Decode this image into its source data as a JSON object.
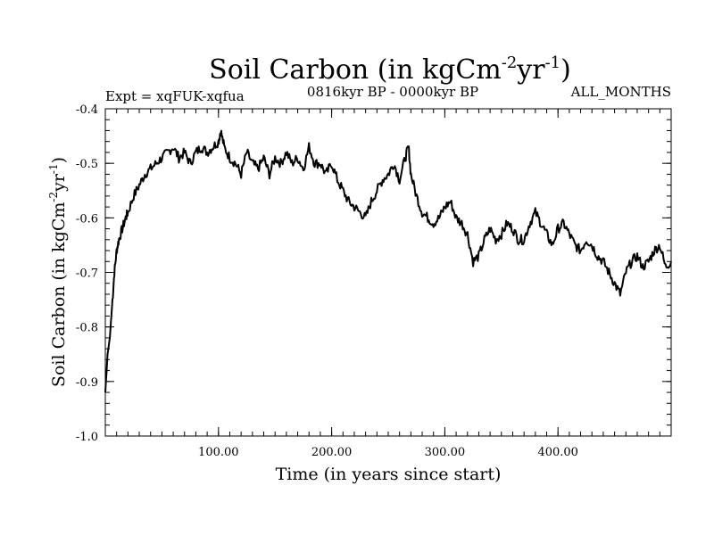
{
  "chart_data": {
    "type": "line",
    "title": "Soil Carbon (in kgCm",
    "title_unit_exp1": "-2",
    "title_unit_mid": "yr",
    "title_unit_exp2": "-1",
    "title_close": ")",
    "left_subtitle": "Expt = xqFUK-xqfua",
    "center_subtitle": "0816kyr BP - 0000kyr BP",
    "right_subtitle": "ALL_MONTHS",
    "xlabel": "Time (in years since start)",
    "ylabel": "Soil Carbon (in kgCm",
    "ylabel_exp1": "-2",
    "ylabel_mid": "yr",
    "ylabel_exp2": "-1",
    "ylabel_close": ")",
    "xlim": [
      0,
      500
    ],
    "ylim": [
      -1.0,
      -0.4
    ],
    "x_ticks": [
      100,
      200,
      300,
      400
    ],
    "x_tick_labels": [
      "100.00",
      "200.00",
      "300.00",
      "400.00"
    ],
    "y_ticks": [
      -1.0,
      -0.9,
      -0.8,
      -0.7,
      -0.6,
      -0.5,
      -0.4
    ],
    "y_tick_labels": [
      "-1.0",
      "-0.9",
      "-0.8",
      "-0.7",
      "-0.6",
      "-0.5",
      "-0.4"
    ],
    "series": [
      {
        "name": "Soil Carbon",
        "color": "#000000",
        "x": [
          0,
          2,
          4,
          6,
          8,
          10,
          12,
          15,
          18,
          20,
          25,
          30,
          35,
          40,
          45,
          50,
          55,
          60,
          65,
          70,
          75,
          80,
          85,
          90,
          95,
          100,
          102,
          105,
          110,
          115,
          120,
          125,
          130,
          135,
          140,
          145,
          150,
          155,
          160,
          165,
          170,
          175,
          180,
          185,
          190,
          195,
          200,
          205,
          210,
          215,
          220,
          225,
          230,
          235,
          240,
          245,
          250,
          255,
          260,
          265,
          268,
          270,
          275,
          280,
          285,
          290,
          295,
          300,
          305,
          310,
          315,
          320,
          325,
          330,
          335,
          340,
          345,
          350,
          355,
          360,
          365,
          370,
          375,
          380,
          385,
          390,
          395,
          400,
          405,
          410,
          415,
          420,
          425,
          430,
          435,
          440,
          445,
          450,
          455,
          460,
          465,
          470,
          475,
          480,
          485,
          490,
          495,
          500
        ],
        "values": [
          -0.92,
          -0.85,
          -0.82,
          -0.76,
          -0.7,
          -0.66,
          -0.64,
          -0.62,
          -0.6,
          -0.59,
          -0.56,
          -0.54,
          -0.52,
          -0.51,
          -0.5,
          -0.49,
          -0.48,
          -0.47,
          -0.49,
          -0.48,
          -0.5,
          -0.48,
          -0.47,
          -0.48,
          -0.47,
          -0.46,
          -0.44,
          -0.47,
          -0.49,
          -0.5,
          -0.52,
          -0.48,
          -0.5,
          -0.51,
          -0.49,
          -0.52,
          -0.49,
          -0.5,
          -0.48,
          -0.5,
          -0.49,
          -0.51,
          -0.47,
          -0.5,
          -0.5,
          -0.52,
          -0.5,
          -0.53,
          -0.55,
          -0.57,
          -0.58,
          -0.59,
          -0.6,
          -0.57,
          -0.55,
          -0.53,
          -0.52,
          -0.5,
          -0.53,
          -0.49,
          -0.47,
          -0.52,
          -0.56,
          -0.59,
          -0.6,
          -0.61,
          -0.6,
          -0.58,
          -0.57,
          -0.6,
          -0.61,
          -0.63,
          -0.68,
          -0.67,
          -0.64,
          -0.62,
          -0.64,
          -0.63,
          -0.61,
          -0.62,
          -0.64,
          -0.64,
          -0.61,
          -0.59,
          -0.61,
          -0.63,
          -0.65,
          -0.62,
          -0.61,
          -0.63,
          -0.65,
          -0.66,
          -0.64,
          -0.65,
          -0.67,
          -0.68,
          -0.7,
          -0.72,
          -0.74,
          -0.7,
          -0.68,
          -0.67,
          -0.69,
          -0.68,
          -0.66,
          -0.65,
          -0.69,
          -0.68
        ]
      }
    ]
  }
}
